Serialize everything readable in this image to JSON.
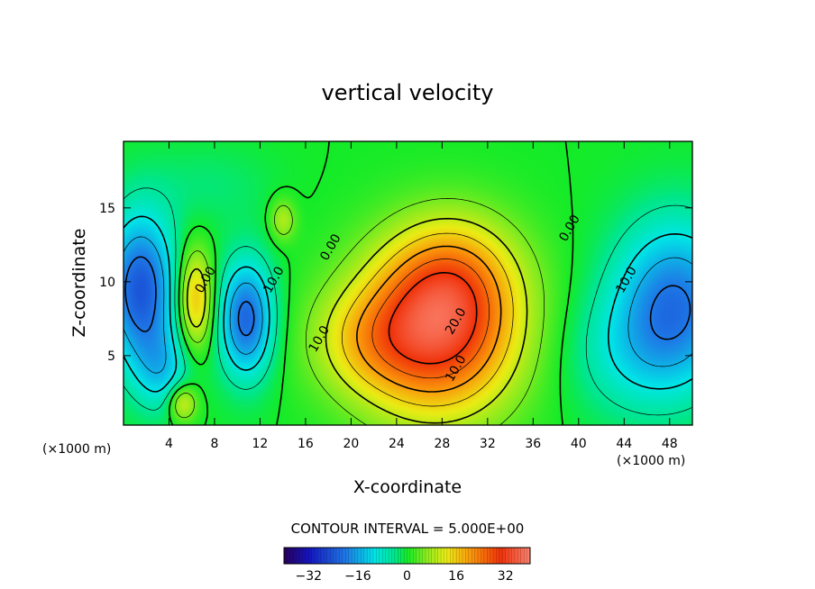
{
  "chart_data": {
    "type": "heatmap",
    "title": "vertical velocity",
    "xlabel": "X-coordinate",
    "ylabel": "Z-coordinate",
    "x_unit_label": "(×1000 m)",
    "z_unit_label": "(×1000 m)",
    "xlim": [
      0,
      50
    ],
    "ylim": [
      0.3,
      19.5
    ],
    "x_ticks": [
      4,
      8,
      12,
      16,
      20,
      24,
      28,
      32,
      36,
      40,
      44,
      48
    ],
    "x_tick_labels": [
      "4",
      "8",
      "12",
      "16",
      "20",
      "24",
      "28",
      "32",
      "36",
      "40",
      "44",
      "48"
    ],
    "y_ticks": [
      5,
      10,
      15
    ],
    "y_tick_labels": [
      "5",
      "10",
      "15"
    ],
    "contour_interval_text": "CONTOUR INTERVAL = 5.000E+00",
    "contour_interval": 5.0,
    "contour_labels": [
      {
        "text": "0.00",
        "x": 7.5,
        "z": 10.0
      },
      {
        "text": "10.0",
        "x": 13.5,
        "z": 10.0
      },
      {
        "text": "0.00",
        "x": 18.5,
        "z": 12.2
      },
      {
        "text": "10.0",
        "x": 17.5,
        "z": 6.0
      },
      {
        "text": "20.0",
        "x": 29.5,
        "z": 7.2
      },
      {
        "text": "10.0",
        "x": 29.5,
        "z": 4.0
      },
      {
        "text": "0.00",
        "x": 39.5,
        "z": 13.5
      },
      {
        "text": "10.0",
        "x": 44.5,
        "z": 10.0
      }
    ],
    "field_features": [
      {
        "sign": "positive",
        "x": 27.5,
        "z": 6.5,
        "peak": 31,
        "sx": 5.0,
        "sz": 4.0
      },
      {
        "sign": "positive",
        "x": 29.0,
        "z": 10.5,
        "peak": 12,
        "sx": 4.0,
        "sz": 3.0
      },
      {
        "sign": "positive",
        "x": 21.0,
        "z": 6.0,
        "peak": 8,
        "sx": 3.5,
        "sz": 2.5
      },
      {
        "sign": "positive",
        "x": 6.3,
        "z": 8.8,
        "peak": 18,
        "sx": 1.1,
        "sz": 2.4
      },
      {
        "sign": "positive",
        "x": 5.2,
        "z": 1.8,
        "peak": 13,
        "sx": 0.9,
        "sz": 0.9
      },
      {
        "sign": "positive",
        "x": 14.0,
        "z": 14.2,
        "peak": 9,
        "sx": 0.8,
        "sz": 1.0
      },
      {
        "sign": "negative",
        "x": 1.5,
        "z": 9.5,
        "peak": -24,
        "sx": 2.2,
        "sz": 3.6
      },
      {
        "sign": "negative",
        "x": 10.8,
        "z": 7.5,
        "peak": -22,
        "sx": 1.7,
        "sz": 2.8
      },
      {
        "sign": "negative",
        "x": 48.5,
        "z": 8.5,
        "peak": -20,
        "sx": 3.8,
        "sz": 4.0
      },
      {
        "sign": "negative",
        "x": 44.0,
        "z": 5.0,
        "peak": -6,
        "sx": 4.0,
        "sz": 3.0
      },
      {
        "sign": "negative",
        "x": 3.5,
        "z": 4.0,
        "peak": -10,
        "sx": 1.8,
        "sz": 2.0
      },
      {
        "sign": "negative",
        "x": 7.5,
        "z": 16.5,
        "peak": -3,
        "sx": 4.0,
        "sz": 2.0
      }
    ],
    "colorbar": {
      "vmin": -40,
      "vmax": 40,
      "ticks": [
        -32,
        -16,
        0,
        16,
        32
      ],
      "tick_labels": [
        "−32",
        "−16",
        "0",
        "16",
        "32"
      ]
    },
    "grid": false,
    "legend": "none"
  }
}
